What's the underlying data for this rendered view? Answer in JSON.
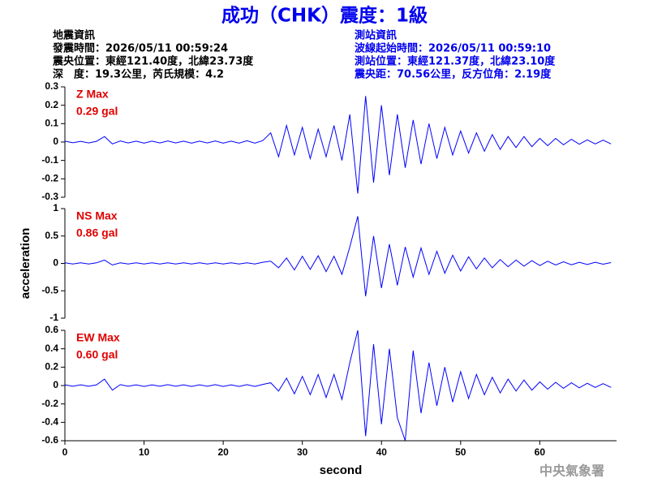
{
  "header": {
    "title": "成功（CHK）震度：1級",
    "left": [
      "地震資訊",
      "發震時間：2026/05/11 00:59:24",
      "震央位置：東經121.40度，北緯23.73度",
      "深　度：19.3公里，芮氏規模：4.2"
    ],
    "right": [
      "測站資訊",
      "波線起始時間：2026/05/11 00:59:10",
      "測站位置：東經121.37度，北緯23.10度",
      "震央距：70.56公里，反方位角：2.19度"
    ],
    "agency": "中央氣象署"
  },
  "chart_data": [
    {
      "type": "line",
      "annotation": [
        "Z Max",
        "0.29 gal"
      ],
      "color": "#0000ff",
      "x": [
        0,
        1,
        2,
        3,
        4,
        5,
        6,
        7,
        8,
        9,
        10,
        11,
        12,
        13,
        14,
        15,
        16,
        17,
        18,
        19,
        20,
        21,
        22,
        23,
        24,
        25,
        26,
        27,
        28,
        29,
        30,
        31,
        32,
        33,
        34,
        35,
        36,
        37,
        38,
        39,
        40,
        41,
        42,
        43,
        44,
        45,
        46,
        47,
        48,
        49,
        50,
        51,
        52,
        53,
        54,
        55,
        56,
        57,
        58,
        59,
        60,
        61,
        62,
        63,
        64,
        65,
        66,
        67,
        68,
        69
      ],
      "values": [
        0.005,
        -0.004,
        0.004,
        -0.005,
        0.004,
        0.03,
        -0.01,
        0.006,
        -0.005,
        0.005,
        -0.006,
        0.005,
        -0.005,
        0.006,
        -0.005,
        0.005,
        -0.006,
        0.005,
        -0.005,
        0.006,
        -0.006,
        0.005,
        -0.006,
        0.007,
        -0.006,
        0.008,
        0.05,
        -0.08,
        0.09,
        -0.07,
        0.08,
        -0.09,
        0.07,
        -0.08,
        0.09,
        -0.1,
        0.15,
        -0.28,
        0.25,
        -0.22,
        0.2,
        -0.18,
        0.15,
        -0.14,
        0.12,
        -0.12,
        0.1,
        -0.09,
        0.08,
        -0.07,
        0.06,
        -0.06,
        0.05,
        -0.05,
        0.04,
        -0.04,
        0.03,
        -0.03,
        0.03,
        -0.025,
        0.02,
        -0.02,
        0.02,
        -0.015,
        0.015,
        -0.012,
        0.012,
        -0.01,
        0.01,
        -0.01
      ],
      "xlim": [
        0,
        69.7
      ],
      "ylim": [
        -0.3,
        0.3
      ],
      "yticks": [
        0.3,
        0.2,
        0.1,
        0,
        -0.1,
        -0.2,
        -0.3
      ]
    },
    {
      "type": "line",
      "annotation": [
        "NS Max",
        "0.86 gal"
      ],
      "color": "#0000ff",
      "ylabel": "acceleration",
      "x": [
        0,
        1,
        2,
        3,
        4,
        5,
        6,
        7,
        8,
        9,
        10,
        11,
        12,
        13,
        14,
        15,
        16,
        17,
        18,
        19,
        20,
        21,
        22,
        23,
        24,
        25,
        26,
        27,
        28,
        29,
        30,
        31,
        32,
        33,
        34,
        35,
        36,
        37,
        38,
        39,
        40,
        41,
        42,
        43,
        44,
        45,
        46,
        47,
        48,
        49,
        50,
        51,
        52,
        53,
        54,
        55,
        56,
        57,
        58,
        59,
        60,
        61,
        62,
        63,
        64,
        65,
        66,
        67,
        68,
        69
      ],
      "values": [
        0.01,
        -0.01,
        0.01,
        -0.01,
        0.01,
        0.06,
        -0.03,
        0.01,
        -0.01,
        0.01,
        -0.01,
        0.01,
        -0.01,
        0.01,
        -0.01,
        0.01,
        -0.01,
        0.01,
        -0.01,
        0.01,
        -0.01,
        0.01,
        -0.01,
        0.01,
        -0.01,
        0.02,
        0.04,
        -0.08,
        0.1,
        -0.12,
        0.13,
        -0.11,
        0.14,
        -0.15,
        0.13,
        -0.2,
        0.3,
        0.86,
        -0.6,
        0.5,
        -0.45,
        0.35,
        -0.4,
        0.3,
        -0.25,
        0.28,
        -0.2,
        0.22,
        -0.18,
        0.15,
        -0.14,
        0.12,
        -0.1,
        0.1,
        -0.08,
        0.07,
        -0.06,
        0.06,
        -0.05,
        0.05,
        -0.04,
        0.04,
        -0.03,
        0.03,
        -0.025,
        0.02,
        -0.02,
        0.02,
        -0.015,
        0.015
      ],
      "xlim": [
        0,
        69.7
      ],
      "ylim": [
        -1,
        1
      ],
      "yticks": [
        1,
        0.5,
        0,
        -0.5,
        -1
      ]
    },
    {
      "type": "line",
      "annotation": [
        "EW Max",
        "0.60 gal"
      ],
      "color": "#0000ff",
      "xlabel": "second",
      "x": [
        0,
        1,
        2,
        3,
        4,
        5,
        6,
        7,
        8,
        9,
        10,
        11,
        12,
        13,
        14,
        15,
        16,
        17,
        18,
        19,
        20,
        21,
        22,
        23,
        24,
        25,
        26,
        27,
        28,
        29,
        30,
        31,
        32,
        33,
        34,
        35,
        36,
        37,
        38,
        39,
        40,
        41,
        42,
        43,
        44,
        45,
        46,
        47,
        48,
        49,
        50,
        51,
        52,
        53,
        54,
        55,
        56,
        57,
        58,
        59,
        60,
        61,
        62,
        63,
        64,
        65,
        66,
        67,
        68,
        69
      ],
      "values": [
        0.008,
        -0.008,
        0.008,
        -0.008,
        0.008,
        0.07,
        -0.05,
        0.01,
        -0.008,
        0.008,
        -0.01,
        0.008,
        -0.008,
        0.01,
        -0.008,
        0.008,
        -0.01,
        0.008,
        -0.008,
        0.01,
        -0.01,
        0.008,
        -0.01,
        0.01,
        -0.01,
        0.012,
        0.03,
        -0.06,
        0.08,
        -0.09,
        0.1,
        -0.1,
        0.12,
        -0.13,
        0.12,
        -0.15,
        0.25,
        0.6,
        -0.55,
        0.45,
        -0.42,
        0.4,
        -0.35,
        -0.6,
        0.38,
        -0.3,
        0.25,
        -0.22,
        0.2,
        -0.18,
        0.15,
        -0.14,
        0.12,
        -0.1,
        0.09,
        -0.08,
        0.07,
        -0.06,
        0.06,
        -0.05,
        0.04,
        -0.04,
        0.035,
        -0.03,
        0.03,
        -0.025,
        0.025,
        -0.02,
        0.02,
        -0.02
      ],
      "xlim": [
        0,
        69.7
      ],
      "ylim": [
        -0.6,
        0.6
      ],
      "yticks": [
        0.6,
        0.4,
        0.2,
        0,
        -0.2,
        -0.4,
        -0.6
      ],
      "xticks": [
        0,
        10,
        20,
        30,
        40,
        50,
        60
      ]
    }
  ]
}
